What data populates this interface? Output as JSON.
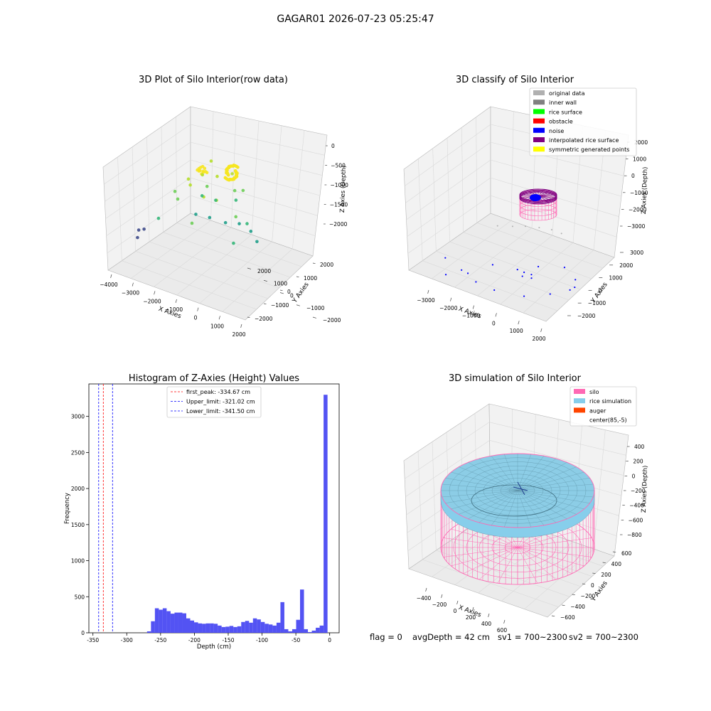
{
  "figure": {
    "suptitle": "GAGAR01 2026-07-23 05:25:47",
    "footer": {
      "flag": "flag = 0",
      "avg_depth": "avgDepth = 42 cm",
      "sv1": "sv1 = 700~2300",
      "sv2": "sv2 = 700~2300"
    }
  },
  "chart_data": [
    {
      "type": "scatter",
      "projection": "3d",
      "title": "3D Plot of Silo Interior(row data)",
      "xlabel": "X Axies",
      "ylabel": "Y Axies",
      "zlabel": "Z Axies (Depth)",
      "x_ticks": [
        "−4000",
        "−3000",
        "−2000",
        "−1000",
        "0",
        "1000",
        "2000"
      ],
      "y_ticks": [
        "−2000",
        "−1000",
        "0",
        "1000",
        "2000"
      ],
      "z_ticks": [
        "0",
        "−500",
        "−1000",
        "−1500",
        "−2000"
      ],
      "colormap": "viridis",
      "series": [
        {
          "color": "#f6e620",
          "points": [
            [
              -880,
              -420,
              -450
            ],
            [
              -820,
              -380,
              -430
            ],
            [
              -760,
              -320,
              -420
            ],
            [
              -700,
              -260,
              -460
            ],
            [
              -640,
              -300,
              -500
            ],
            [
              -900,
              -300,
              -520
            ],
            [
              -780,
              -220,
              -550
            ],
            [
              -700,
              -400,
              -480
            ],
            [
              -840,
              -500,
              -470
            ],
            [
              -620,
              -200,
              -540
            ],
            [
              -980,
              -380,
              -500
            ],
            [
              -740,
              -460,
              -520
            ]
          ]
        },
        {
          "color": "#b5de2b",
          "points": [
            [
              -1200,
              -600,
              -750
            ],
            [
              -400,
              300,
              -700
            ],
            [
              -1000,
              900,
              -650
            ],
            [
              200,
              -900,
              -760
            ],
            [
              -1500,
              -200,
              -780
            ],
            [
              -300,
              -1100,
              -720
            ],
            [
              -1150,
              400,
              -800
            ],
            [
              100,
              700,
              -680
            ]
          ]
        },
        {
          "color": "#6ece58",
          "points": [
            [
              -1900,
              -400,
              -1150
            ],
            [
              -1300,
              1100,
              -1200
            ],
            [
              300,
              1300,
              -1100
            ],
            [
              -2400,
              300,
              -1250
            ],
            [
              -700,
              -1400,
              -1180
            ],
            [
              800,
              -300,
              -1120
            ],
            [
              -200,
              1500,
              -1220
            ]
          ]
        },
        {
          "color": "#35b779",
          "points": [
            [
              -2600,
              -800,
              -1500
            ],
            [
              -1100,
              1500,
              -1520
            ],
            [
              -300,
              1800,
              -1480
            ],
            [
              700,
              900,
              -1550
            ],
            [
              -1800,
              1600,
              -1560
            ],
            [
              900,
              -700,
              -1490
            ]
          ]
        },
        {
          "color": "#1f9e89",
          "points": [
            [
              -1600,
              1900,
              -2000
            ],
            [
              -900,
              2000,
              -2020
            ],
            [
              -300,
              2100,
              -1980
            ],
            [
              300,
              2000,
              -2010
            ],
            [
              800,
              1600,
              -2030
            ],
            [
              -2200,
              1800,
              -2000
            ]
          ]
        },
        {
          "color": "#3e4a89",
          "points": [
            [
              -3800,
              -300,
              -2000
            ],
            [
              -3700,
              -600,
              -2050
            ],
            [
              -3600,
              -200,
              -1980
            ]
          ]
        }
      ]
    },
    {
      "type": "scatter",
      "projection": "3d",
      "title": "3D classify of Silo Interior",
      "xlabel": "X Axies",
      "ylabel": "Y Axies",
      "zlabel": "Z Axies (Depth)",
      "x_ticks": [
        "−3000",
        "−2000",
        "−1000",
        "0",
        "1000",
        "2000"
      ],
      "y_ticks": [
        "−2000",
        "−1000",
        "0",
        "1000",
        "2000",
        "3000"
      ],
      "z_ticks": [
        "2000",
        "1000",
        "0",
        "−1000",
        "−2000",
        "−3000"
      ],
      "legend": [
        {
          "label": "original data",
          "color": "#b0b0b0"
        },
        {
          "label": "inner wall",
          "color": "#808080"
        },
        {
          "label": "rice surface",
          "color": "#00ff00"
        },
        {
          "label": "obstacle",
          "color": "#ff0000"
        },
        {
          "label": "noise",
          "color": "#0000ff"
        },
        {
          "label": "interpolated rice surface",
          "color": "#800080"
        },
        {
          "label": "symmetric generated points",
          "color": "#ffff00"
        }
      ],
      "legend_position": "upper right",
      "cylinder": {
        "radius": 420,
        "z_top": -1000,
        "z_bottom": -2300,
        "top_color": "#800080",
        "body_color": "#ff69b4"
      },
      "noise_points": [
        [
          -3500,
          -300,
          -1500
        ],
        [
          -3300,
          -600,
          -2100
        ],
        [
          -2900,
          400,
          -2500
        ],
        [
          -2200,
          1100,
          -2200
        ],
        [
          -1500,
          1800,
          -2600
        ],
        [
          -800,
          2200,
          -2400
        ],
        [
          200,
          2500,
          -2200
        ],
        [
          1100,
          1800,
          -2000
        ],
        [
          1600,
          900,
          -1600
        ],
        [
          1800,
          200,
          -1200
        ],
        [
          1500,
          -800,
          -900
        ],
        [
          800,
          -1600,
          -800
        ],
        [
          -300,
          -2000,
          -700
        ],
        [
          -1300,
          -1700,
          -900
        ],
        [
          -2300,
          -1100,
          -1100
        ],
        [
          -100,
          -200,
          -1050
        ],
        [
          100,
          150,
          -1100
        ],
        [
          -200,
          100,
          -1080
        ],
        [
          250,
          -100,
          -1060
        ]
      ],
      "original_points": [
        [
          -1600,
          1600,
          -2400
        ],
        [
          -1200,
          1900,
          -2500
        ],
        [
          -700,
          2100,
          -2550
        ],
        [
          -200,
          2200,
          -2600
        ],
        [
          300,
          2100,
          -2550
        ],
        [
          -2100,
          1300,
          -2300
        ]
      ]
    },
    {
      "type": "bar",
      "title": "Histogram of Z-Axies (Height) Values",
      "xlabel": "Depth (cm)",
      "ylabel": "Frequency",
      "xlim": [
        -356,
        14
      ],
      "ylim": [
        0,
        3450
      ],
      "x_ticks": [
        -350,
        -300,
        -250,
        -200,
        -150,
        -100,
        -50,
        0
      ],
      "y_ticks": [
        0,
        500,
        1000,
        1500,
        2000,
        2500,
        3000
      ],
      "bin_width": 5.8,
      "color": "#4a4af2",
      "bars": [
        {
          "left": -270,
          "value": 20
        },
        {
          "left": -264.2,
          "value": 160
        },
        {
          "left": -258.4,
          "value": 340
        },
        {
          "left": -252.6,
          "value": 320
        },
        {
          "left": -246.8,
          "value": 340
        },
        {
          "left": -241,
          "value": 300
        },
        {
          "left": -235.2,
          "value": 265
        },
        {
          "left": -229.4,
          "value": 280
        },
        {
          "left": -223.6,
          "value": 280
        },
        {
          "left": -217.8,
          "value": 270
        },
        {
          "left": -212,
          "value": 200
        },
        {
          "left": -206.2,
          "value": 170
        },
        {
          "left": -200.4,
          "value": 145
        },
        {
          "left": -194.6,
          "value": 130
        },
        {
          "left": -188.8,
          "value": 125
        },
        {
          "left": -183,
          "value": 130
        },
        {
          "left": -177.2,
          "value": 130
        },
        {
          "left": -171.4,
          "value": 125
        },
        {
          "left": -165.6,
          "value": 100
        },
        {
          "left": -159.8,
          "value": 80
        },
        {
          "left": -154,
          "value": 85
        },
        {
          "left": -148.2,
          "value": 95
        },
        {
          "left": -142.4,
          "value": 80
        },
        {
          "left": -136.6,
          "value": 90
        },
        {
          "left": -130.8,
          "value": 150
        },
        {
          "left": -125,
          "value": 165
        },
        {
          "left": -119.2,
          "value": 140
        },
        {
          "left": -113.4,
          "value": 200
        },
        {
          "left": -107.6,
          "value": 185
        },
        {
          "left": -101.8,
          "value": 150
        },
        {
          "left": -96,
          "value": 125
        },
        {
          "left": -90.2,
          "value": 115
        },
        {
          "left": -84.4,
          "value": 100
        },
        {
          "left": -78.6,
          "value": 140
        },
        {
          "left": -72.8,
          "value": 425
        },
        {
          "left": -67,
          "value": 50
        },
        {
          "left": -61.2,
          "value": 20
        },
        {
          "left": -55.4,
          "value": 50
        },
        {
          "left": -49.6,
          "value": 180
        },
        {
          "left": -43.8,
          "value": 600
        },
        {
          "left": -38,
          "value": 50
        },
        {
          "left": -32.2,
          "value": 10
        },
        {
          "left": -26.4,
          "value": 30
        },
        {
          "left": -20.6,
          "value": 70
        },
        {
          "left": -14.8,
          "value": 100
        },
        {
          "left": -9,
          "value": 3300
        }
      ],
      "vlines": [
        {
          "x": -334.67,
          "color": "#ff0000",
          "label": "first_peak: -334.67 cm"
        },
        {
          "x": -321.02,
          "color": "#0000ff",
          "label": "Upper_limit: -321.02 cm"
        },
        {
          "x": -341.5,
          "color": "#0000ff",
          "label": "Lower_limit: -341.50 cm"
        }
      ],
      "legend_position": "upper center"
    },
    {
      "type": "surface",
      "projection": "3d",
      "title": "3D simulation of Silo Interior",
      "xlabel": "X Axies",
      "ylabel": "Y Axies",
      "zlabel": "Z Axies (Depth)",
      "x_ticks": [
        "−400",
        "−200",
        "0",
        "200",
        "400",
        "600"
      ],
      "y_ticks": [
        "−600",
        "−400",
        "−200",
        "0",
        "200",
        "400",
        "600"
      ],
      "z_ticks": [
        "400",
        "200",
        "0",
        "−200",
        "−400",
        "−600",
        "−800"
      ],
      "legend": [
        {
          "label": "silo",
          "color": "#ff69b4"
        },
        {
          "label": "rice simulation",
          "color": "#87ceeb"
        },
        {
          "label": "auger",
          "color": "#ff4500"
        },
        {
          "label": "center(85,-5)",
          "color": "#ffffff"
        }
      ],
      "legend_position": "upper right",
      "silo": {
        "radius": 650,
        "z_top": -42,
        "z_bottom": -800,
        "color": "#ff69b4"
      },
      "rice": {
        "color": "#87ceeb",
        "surface_depth": -42
      }
    }
  ]
}
